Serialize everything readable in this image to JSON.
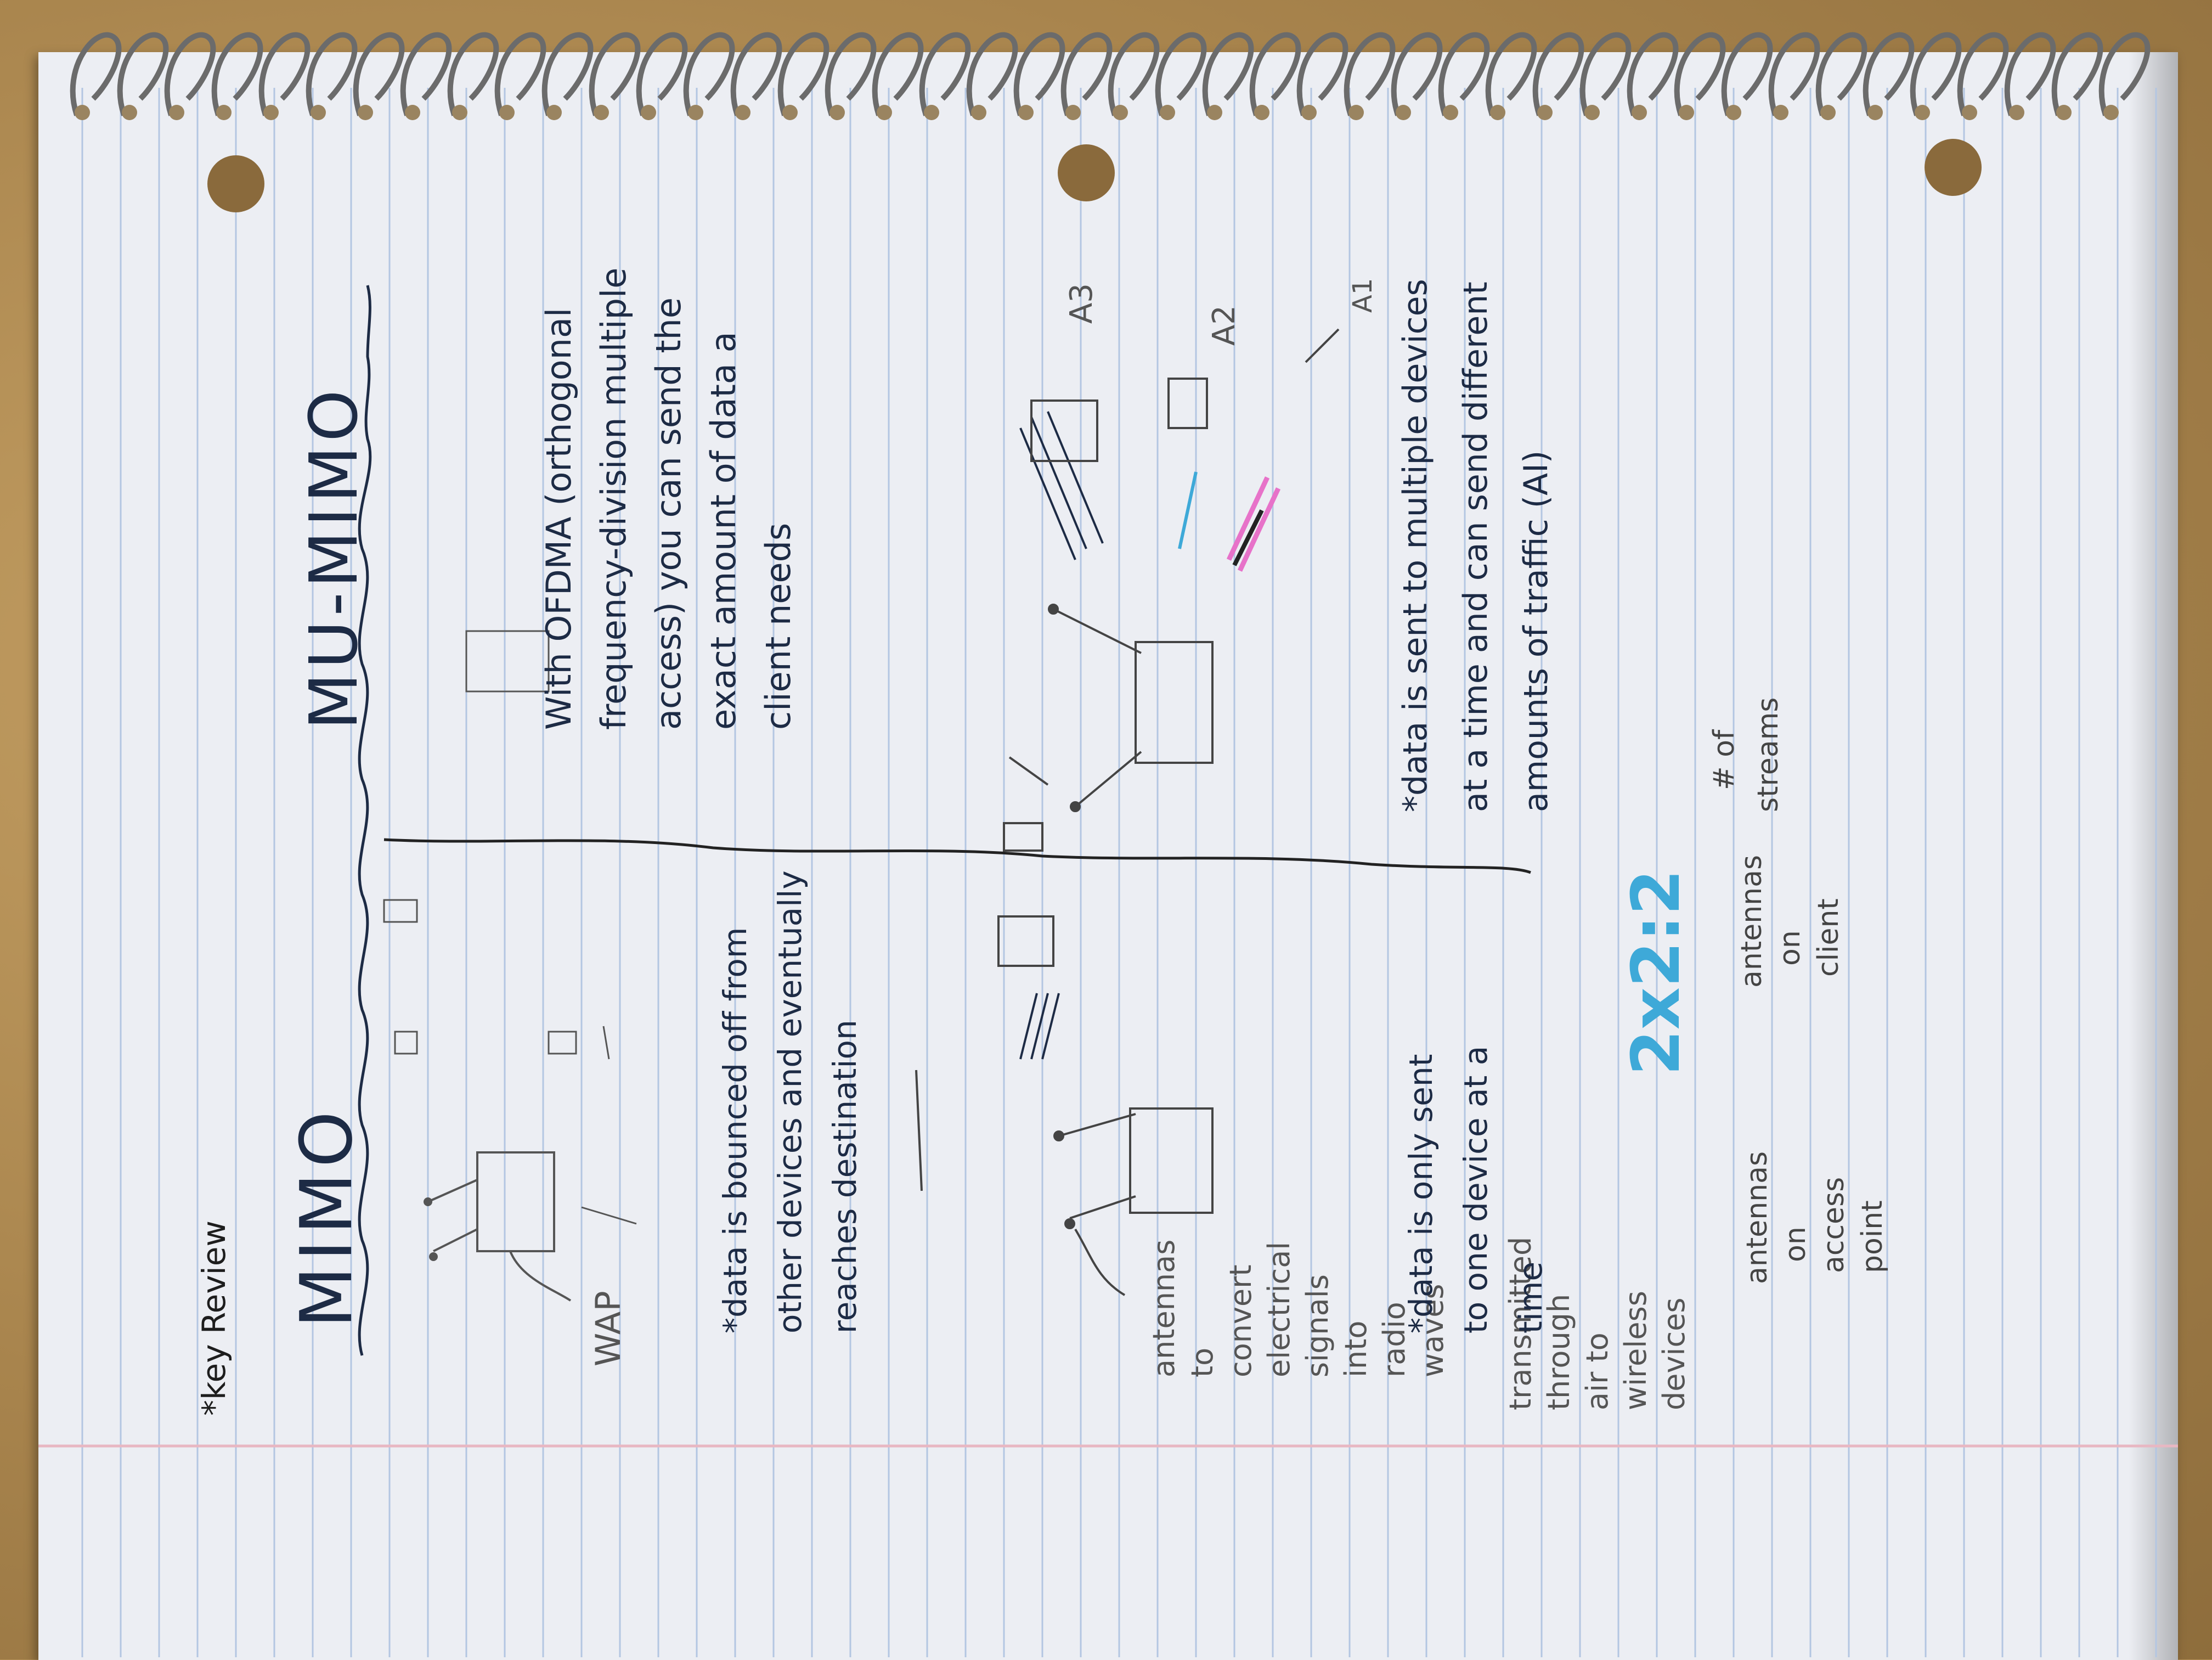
{
  "page": {
    "header_note": "*key Review",
    "colors": {
      "paper": "#eceef3",
      "rule_line": "#b3c6e2",
      "margin_line": "#e8b7c2",
      "pencil": "#4a4a4a",
      "ink": "#1d2b45",
      "highlight_blue": "#3ea9d8",
      "highlight_pink": "#e772c9"
    }
  },
  "mimo": {
    "title": "MIMO",
    "wap_label": "WAP",
    "antenna_note": [
      "antennas",
      "to",
      "convert",
      "electrical",
      "signals",
      "into",
      "radio",
      "waves"
    ],
    "transmit_note": [
      "transmitted",
      "through",
      "air to",
      "wireless",
      "devices"
    ],
    "bounce_note": [
      "*data is bounced off from",
      "other devices and eventually",
      "reaches destination"
    ],
    "single_note": [
      "*data is only sent",
      "to one device at a",
      "time"
    ],
    "ratio": "2x2:2",
    "ap_antennas": [
      "antennas",
      "on",
      "access",
      "point"
    ],
    "client_antennas": [
      "antennas",
      "on",
      "client"
    ]
  },
  "mumimo": {
    "title": "MU-MIMO",
    "ofdma_note": [
      "With OFDMA (orthogonal",
      "frequency-division multiple",
      "access) you can send the",
      "exact amount of data a",
      "client needs"
    ],
    "multi_note": [
      "*data is sent to multiple devices",
      "at a time and can send different",
      "amounts of traffic (AI)"
    ],
    "streams": [
      "# of",
      "streams"
    ],
    "client_labels": [
      "A3",
      "A2",
      "A1"
    ]
  }
}
